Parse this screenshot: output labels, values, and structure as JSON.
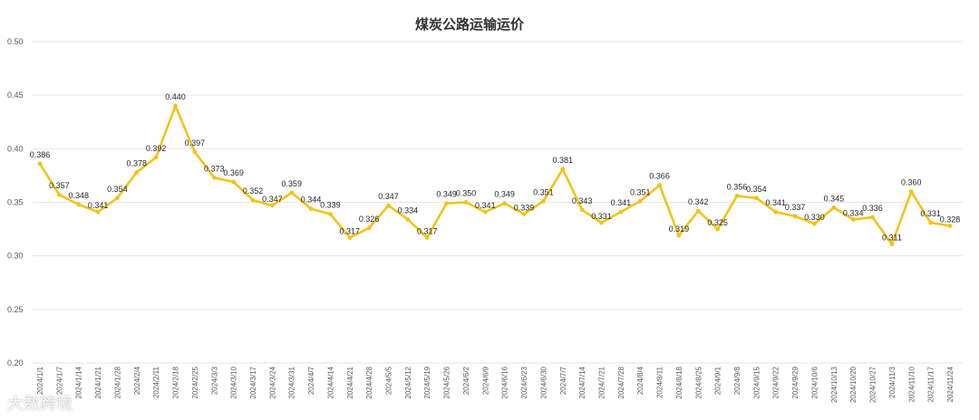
{
  "colors": {
    "line": "#F2C418",
    "grid": "#e6e6e6",
    "text": "#595959"
  },
  "watermark": "大数跨境",
  "chart_data": {
    "type": "line",
    "title": "煤炭公路运输运价",
    "xlabel": "",
    "ylabel": "",
    "ylim": [
      0.2,
      0.5
    ],
    "yticks": [
      "0.50",
      "0.45",
      "0.40",
      "0.35",
      "0.30",
      "0.25",
      "0.20"
    ],
    "grid": true,
    "categories": [
      "2024/1/1",
      "2024/1/7",
      "2024/1/14",
      "2024/1/21",
      "2024/1/28",
      "2024/2/4",
      "2024/2/11",
      "2024/2/18",
      "2024/2/25",
      "2024/3/3",
      "2024/3/10",
      "2024/3/17",
      "2024/3/24",
      "2024/3/31",
      "2024/4/7",
      "2024/4/14",
      "2024/4/21",
      "2024/4/28",
      "2024/5/5",
      "2024/5/12",
      "2024/5/19",
      "2024/5/26",
      "2024/6/2",
      "2024/6/9",
      "2024/6/16",
      "2024/6/23",
      "2024/6/30",
      "2024/7/7",
      "2024/7/14",
      "2024/7/21",
      "2024/7/28",
      "2024/8/4",
      "2024/8/11",
      "2024/8/18",
      "2024/8/25",
      "2024/9/1",
      "2024/9/8",
      "2024/9/15",
      "2024/9/22",
      "2024/9/29",
      "2024/10/6",
      "2024/10/13",
      "2024/10/20",
      "2024/10/27",
      "2024/11/3",
      "2024/11/10",
      "2024/11/17",
      "2024/11/24"
    ],
    "values": [
      0.386,
      0.357,
      0.348,
      0.341,
      0.354,
      0.378,
      0.392,
      0.44,
      0.397,
      0.373,
      0.369,
      0.352,
      0.347,
      0.359,
      0.344,
      0.339,
      0.317,
      0.326,
      0.347,
      0.334,
      0.317,
      0.349,
      0.35,
      0.341,
      0.349,
      0.339,
      0.351,
      0.381,
      0.343,
      0.331,
      0.341,
      0.351,
      0.366,
      0.319,
      0.342,
      0.325,
      0.356,
      0.354,
      0.341,
      0.337,
      0.33,
      0.345,
      0.334,
      0.336,
      0.311,
      0.36,
      0.331,
      0.328
    ],
    "labels": [
      "0.386",
      "0.357",
      "0.348",
      "0.341",
      "0.354",
      "0.378",
      "0.392",
      "0.440",
      "0.397",
      "0.373",
      "0.369",
      "0.352",
      "0.347",
      "0.359",
      "0.344",
      "0.339",
      "0.317",
      "0.326",
      "0.347",
      "0.334",
      "0.317",
      "0.349",
      "0.350",
      "0.341",
      "0.349",
      "0.339",
      "0.351",
      "0.381",
      "0.343",
      "0.331",
      "0.341",
      "0.351",
      "0.366",
      "0.319",
      "0.342",
      "0.325",
      "0.356",
      "0.354",
      "0.341",
      "0.337",
      "0.330",
      "0.345",
      "0.334",
      "0.336",
      "0.311",
      "0.360",
      "0.331",
      "0.328"
    ]
  }
}
